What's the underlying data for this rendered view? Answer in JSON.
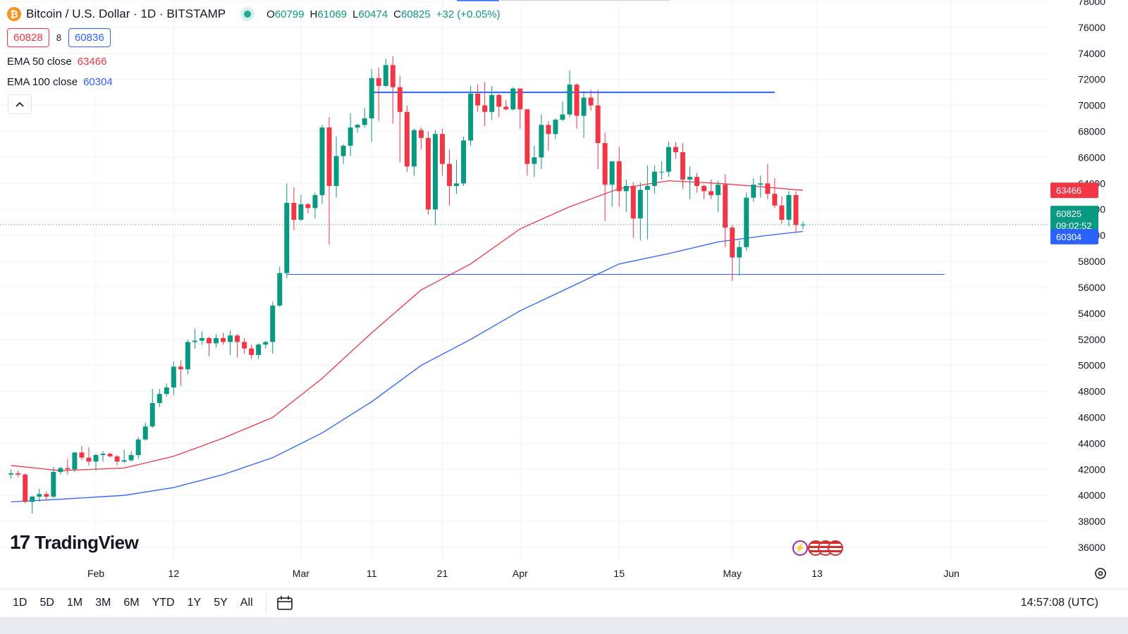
{
  "header": {
    "symbol_title": "Bitcoin / U.S. Dollar · 1D · BITSTAMP",
    "icon": "bitcoin-icon",
    "ohlc": [
      {
        "key": "O",
        "value": "60799"
      },
      {
        "key": "H",
        "value": "61069"
      },
      {
        "key": "L",
        "value": "60474"
      },
      {
        "key": "C",
        "value": "60825"
      },
      {
        "key": "",
        "value": "+32 (+0.05%)"
      }
    ]
  },
  "quote": {
    "sell": "60828",
    "spread": "8",
    "buy": "60836"
  },
  "indicators": [
    {
      "label": "EMA 50 close",
      "value": "63466",
      "color": "#f23645"
    },
    {
      "label": "EMA 100 close",
      "value": "60304",
      "color": "#2962ff"
    }
  ],
  "price_tags": {
    "ema50": "63466",
    "last": "60825",
    "countdown": "09:02:52",
    "ema100": "60304",
    "last_color": "#089981",
    "ema50_color": "#f23645",
    "ema100_color": "#2962ff"
  },
  "branding": {
    "logo_text": "TradingView"
  },
  "toolbar": {
    "timeframes": [
      "1D",
      "5D",
      "1M",
      "3M",
      "6M",
      "YTD",
      "1Y",
      "5Y",
      "All"
    ],
    "calendar_icon": "calendar-icon",
    "clock": "14:57:08 (UTC)"
  },
  "colors": {
    "up": "#089981",
    "down": "#f23645",
    "ema50": "#f23645",
    "ema100": "#2962ff",
    "hline": "#2962ff"
  },
  "chart_data": {
    "type": "candlestick",
    "symbol": "BTCUSD",
    "interval": "1D",
    "ylim": [
      35000,
      78000
    ],
    "yticks": [
      36000,
      38000,
      40000,
      42000,
      44000,
      46000,
      48000,
      50000,
      52000,
      54000,
      56000,
      58000,
      60000,
      62000,
      64000,
      66000,
      68000,
      70000,
      72000,
      74000,
      76000,
      78000
    ],
    "x_tick_labels": [
      "Feb",
      "12",
      "Mar",
      "11",
      "21",
      "Apr",
      "15",
      "May",
      "13",
      "Jun"
    ],
    "x_tick_dates": [
      "2024-02-01",
      "2024-02-12",
      "2024-03-01",
      "2024-03-11",
      "2024-03-21",
      "2024-04-01",
      "2024-04-15",
      "2024-05-01",
      "2024-05-13",
      "2024-06-01"
    ],
    "grid": true,
    "horizontal_lines": [
      {
        "price": 71000,
        "from": "2024-03-11",
        "to": "2024-05-07"
      },
      {
        "price": 57000,
        "from": "2024-02-28",
        "to": "2024-05-31"
      }
    ],
    "candles": [
      {
        "date": "2024-01-20",
        "o": 41600,
        "h": 42000,
        "l": 41300,
        "c": 41700
      },
      {
        "date": "2024-01-21",
        "o": 41700,
        "h": 41900,
        "l": 41400,
        "c": 41600
      },
      {
        "date": "2024-01-22",
        "o": 41600,
        "h": 41700,
        "l": 39400,
        "c": 39500
      },
      {
        "date": "2024-01-23",
        "o": 39500,
        "h": 40000,
        "l": 38600,
        "c": 39900
      },
      {
        "date": "2024-01-24",
        "o": 39900,
        "h": 40500,
        "l": 39500,
        "c": 40100
      },
      {
        "date": "2024-01-25",
        "o": 40100,
        "h": 40300,
        "l": 39600,
        "c": 39900
      },
      {
        "date": "2024-01-26",
        "o": 39900,
        "h": 42200,
        "l": 39800,
        "c": 41800
      },
      {
        "date": "2024-01-27",
        "o": 41800,
        "h": 42200,
        "l": 41600,
        "c": 42100
      },
      {
        "date": "2024-01-28",
        "o": 42100,
        "h": 42800,
        "l": 41600,
        "c": 42000
      },
      {
        "date": "2024-01-29",
        "o": 42000,
        "h": 43300,
        "l": 41800,
        "c": 43300
      },
      {
        "date": "2024-01-30",
        "o": 43300,
        "h": 43800,
        "l": 42700,
        "c": 42900
      },
      {
        "date": "2024-01-31",
        "o": 42900,
        "h": 43700,
        "l": 42300,
        "c": 42600
      },
      {
        "date": "2024-02-01",
        "o": 42600,
        "h": 43200,
        "l": 41900,
        "c": 43100
      },
      {
        "date": "2024-02-02",
        "o": 43100,
        "h": 43400,
        "l": 42600,
        "c": 43200
      },
      {
        "date": "2024-02-03",
        "o": 43200,
        "h": 43300,
        "l": 42900,
        "c": 43000
      },
      {
        "date": "2024-02-04",
        "o": 43000,
        "h": 43100,
        "l": 42300,
        "c": 42600
      },
      {
        "date": "2024-02-05",
        "o": 42600,
        "h": 43500,
        "l": 42500,
        "c": 42700
      },
      {
        "date": "2024-02-06",
        "o": 42700,
        "h": 43400,
        "l": 42600,
        "c": 43100
      },
      {
        "date": "2024-02-07",
        "o": 43100,
        "h": 44500,
        "l": 42800,
        "c": 44300
      },
      {
        "date": "2024-02-08",
        "o": 44300,
        "h": 45600,
        "l": 44200,
        "c": 45300
      },
      {
        "date": "2024-02-09",
        "o": 45300,
        "h": 48200,
        "l": 45200,
        "c": 47100
      },
      {
        "date": "2024-02-10",
        "o": 47100,
        "h": 48200,
        "l": 46800,
        "c": 47800
      },
      {
        "date": "2024-02-11",
        "o": 47800,
        "h": 48600,
        "l": 47600,
        "c": 48300
      },
      {
        "date": "2024-02-12",
        "o": 48300,
        "h": 50300,
        "l": 47700,
        "c": 49900
      },
      {
        "date": "2024-02-13",
        "o": 49900,
        "h": 50400,
        "l": 48400,
        "c": 49700
      },
      {
        "date": "2024-02-14",
        "o": 49700,
        "h": 52000,
        "l": 49300,
        "c": 51800
      },
      {
        "date": "2024-02-15",
        "o": 51800,
        "h": 52800,
        "l": 51300,
        "c": 51900
      },
      {
        "date": "2024-02-16",
        "o": 51900,
        "h": 52600,
        "l": 51600,
        "c": 52100
      },
      {
        "date": "2024-02-17",
        "o": 52100,
        "h": 52200,
        "l": 50700,
        "c": 51700
      },
      {
        "date": "2024-02-18",
        "o": 51700,
        "h": 52400,
        "l": 51400,
        "c": 52100
      },
      {
        "date": "2024-02-19",
        "o": 52100,
        "h": 52500,
        "l": 51600,
        "c": 51800
      },
      {
        "date": "2024-02-20",
        "o": 51800,
        "h": 52700,
        "l": 50800,
        "c": 52300
      },
      {
        "date": "2024-02-21",
        "o": 52300,
        "h": 52400,
        "l": 50600,
        "c": 51800
      },
      {
        "date": "2024-02-22",
        "o": 51800,
        "h": 52100,
        "l": 50900,
        "c": 51300
      },
      {
        "date": "2024-02-23",
        "o": 51300,
        "h": 51600,
        "l": 50500,
        "c": 50800
      },
      {
        "date": "2024-02-24",
        "o": 50800,
        "h": 51700,
        "l": 50500,
        "c": 51600
      },
      {
        "date": "2024-02-25",
        "o": 51600,
        "h": 51900,
        "l": 51300,
        "c": 51800
      },
      {
        "date": "2024-02-26",
        "o": 51800,
        "h": 54900,
        "l": 50900,
        "c": 54600
      },
      {
        "date": "2024-02-27",
        "o": 54600,
        "h": 57600,
        "l": 54500,
        "c": 57100
      },
      {
        "date": "2024-02-28",
        "o": 57100,
        "h": 64000,
        "l": 56700,
        "c": 62500
      },
      {
        "date": "2024-02-29",
        "o": 62500,
        "h": 63700,
        "l": 60400,
        "c": 61200
      },
      {
        "date": "2024-03-01",
        "o": 61200,
        "h": 63100,
        "l": 61100,
        "c": 62400
      },
      {
        "date": "2024-03-02",
        "o": 62400,
        "h": 62500,
        "l": 61700,
        "c": 62100
      },
      {
        "date": "2024-03-03",
        "o": 62100,
        "h": 63300,
        "l": 61300,
        "c": 63100
      },
      {
        "date": "2024-03-04",
        "o": 63100,
        "h": 68500,
        "l": 62400,
        "c": 68300
      },
      {
        "date": "2024-03-05",
        "o": 68300,
        "h": 69100,
        "l": 59300,
        "c": 63800
      },
      {
        "date": "2024-03-06",
        "o": 63800,
        "h": 67600,
        "l": 62900,
        "c": 66100
      },
      {
        "date": "2024-03-07",
        "o": 66100,
        "h": 67000,
        "l": 65500,
        "c": 66900
      },
      {
        "date": "2024-03-08",
        "o": 66900,
        "h": 69400,
        "l": 66100,
        "c": 68300
      },
      {
        "date": "2024-03-09",
        "o": 68300,
        "h": 68600,
        "l": 67900,
        "c": 68500
      },
      {
        "date": "2024-03-10",
        "o": 68500,
        "h": 69800,
        "l": 68300,
        "c": 69000
      },
      {
        "date": "2024-03-11",
        "o": 69000,
        "h": 72800,
        "l": 67200,
        "c": 72100
      },
      {
        "date": "2024-03-12",
        "o": 72100,
        "h": 72900,
        "l": 68800,
        "c": 71500
      },
      {
        "date": "2024-03-13",
        "o": 71500,
        "h": 73600,
        "l": 71400,
        "c": 73100
      },
      {
        "date": "2024-03-14",
        "o": 73100,
        "h": 73800,
        "l": 68600,
        "c": 71400
      },
      {
        "date": "2024-03-15",
        "o": 71400,
        "h": 72300,
        "l": 65600,
        "c": 69500
      },
      {
        "date": "2024-03-16",
        "o": 69500,
        "h": 70000,
        "l": 64900,
        "c": 65300
      },
      {
        "date": "2024-03-17",
        "o": 65300,
        "h": 68200,
        "l": 64600,
        "c": 68100
      },
      {
        "date": "2024-03-18",
        "o": 68100,
        "h": 68300,
        "l": 66600,
        "c": 67500
      },
      {
        "date": "2024-03-19",
        "o": 67500,
        "h": 68000,
        "l": 61600,
        "c": 62000
      },
      {
        "date": "2024-03-20",
        "o": 62000,
        "h": 68100,
        "l": 60800,
        "c": 67800
      },
      {
        "date": "2024-03-21",
        "o": 67800,
        "h": 68200,
        "l": 64600,
        "c": 65500
      },
      {
        "date": "2024-03-22",
        "o": 65500,
        "h": 66600,
        "l": 62300,
        "c": 63800
      },
      {
        "date": "2024-03-23",
        "o": 63800,
        "h": 65800,
        "l": 63200,
        "c": 64000
      },
      {
        "date": "2024-03-24",
        "o": 64000,
        "h": 67600,
        "l": 63800,
        "c": 67300
      },
      {
        "date": "2024-03-25",
        "o": 67300,
        "h": 71500,
        "l": 66900,
        "c": 70900
      },
      {
        "date": "2024-03-26",
        "o": 70900,
        "h": 71600,
        "l": 69500,
        "c": 70000
      },
      {
        "date": "2024-03-27",
        "o": 70000,
        "h": 71800,
        "l": 68400,
        "c": 69500
      },
      {
        "date": "2024-03-28",
        "o": 69500,
        "h": 71500,
        "l": 68900,
        "c": 70800
      },
      {
        "date": "2024-03-29",
        "o": 70800,
        "h": 70900,
        "l": 69100,
        "c": 69900
      },
      {
        "date": "2024-03-30",
        "o": 69900,
        "h": 70400,
        "l": 69600,
        "c": 69700
      },
      {
        "date": "2024-03-31",
        "o": 69700,
        "h": 71400,
        "l": 69600,
        "c": 71300
      },
      {
        "date": "2024-04-01",
        "o": 71300,
        "h": 71300,
        "l": 68200,
        "c": 69700
      },
      {
        "date": "2024-04-02",
        "o": 69700,
        "h": 69700,
        "l": 64600,
        "c": 65500
      },
      {
        "date": "2024-04-03",
        "o": 65500,
        "h": 66900,
        "l": 64500,
        "c": 66000
      },
      {
        "date": "2024-04-04",
        "o": 66000,
        "h": 69300,
        "l": 65100,
        "c": 68500
      },
      {
        "date": "2024-04-05",
        "o": 68500,
        "h": 68800,
        "l": 66500,
        "c": 67800
      },
      {
        "date": "2024-04-06",
        "o": 67800,
        "h": 69000,
        "l": 67400,
        "c": 68900
      },
      {
        "date": "2024-04-07",
        "o": 68900,
        "h": 70300,
        "l": 68800,
        "c": 69300
      },
      {
        "date": "2024-04-08",
        "o": 69300,
        "h": 72700,
        "l": 69100,
        "c": 71600
      },
      {
        "date": "2024-04-09",
        "o": 71600,
        "h": 71700,
        "l": 68200,
        "c": 69200
      },
      {
        "date": "2024-04-10",
        "o": 69200,
        "h": 71100,
        "l": 67500,
        "c": 70600
      },
      {
        "date": "2024-04-11",
        "o": 70600,
        "h": 71200,
        "l": 69600,
        "c": 70000
      },
      {
        "date": "2024-04-12",
        "o": 70000,
        "h": 71200,
        "l": 65100,
        "c": 67100
      },
      {
        "date": "2024-04-13",
        "o": 67100,
        "h": 67900,
        "l": 61100,
        "c": 63900
      },
      {
        "date": "2024-04-14",
        "o": 63900,
        "h": 65700,
        "l": 62200,
        "c": 65700
      },
      {
        "date": "2024-04-15",
        "o": 65700,
        "h": 66800,
        "l": 62200,
        "c": 63400
      },
      {
        "date": "2024-04-16",
        "o": 63400,
        "h": 64300,
        "l": 61800,
        "c": 63800
      },
      {
        "date": "2024-04-17",
        "o": 63800,
        "h": 64100,
        "l": 59800,
        "c": 61300
      },
      {
        "date": "2024-04-18",
        "o": 61300,
        "h": 64100,
        "l": 59600,
        "c": 63500
      },
      {
        "date": "2024-04-19",
        "o": 63500,
        "h": 65400,
        "l": 59700,
        "c": 63800
      },
      {
        "date": "2024-04-20",
        "o": 63800,
        "h": 65400,
        "l": 63200,
        "c": 64900
      },
      {
        "date": "2024-04-21",
        "o": 64900,
        "h": 65700,
        "l": 64300,
        "c": 64900
      },
      {
        "date": "2024-04-22",
        "o": 64900,
        "h": 67200,
        "l": 64500,
        "c": 66800
      },
      {
        "date": "2024-04-23",
        "o": 66800,
        "h": 67200,
        "l": 65900,
        "c": 66400
      },
      {
        "date": "2024-04-24",
        "o": 66400,
        "h": 67100,
        "l": 63600,
        "c": 64300
      },
      {
        "date": "2024-04-25",
        "o": 64300,
        "h": 65300,
        "l": 62800,
        "c": 64500
      },
      {
        "date": "2024-04-26",
        "o": 64500,
        "h": 64800,
        "l": 63300,
        "c": 63800
      },
      {
        "date": "2024-04-27",
        "o": 63800,
        "h": 63900,
        "l": 62800,
        "c": 63400
      },
      {
        "date": "2024-04-28",
        "o": 63400,
        "h": 64300,
        "l": 62800,
        "c": 63100
      },
      {
        "date": "2024-04-29",
        "o": 63100,
        "h": 64200,
        "l": 61800,
        "c": 63900
      },
      {
        "date": "2024-04-30",
        "o": 63900,
        "h": 64700,
        "l": 59100,
        "c": 60600
      },
      {
        "date": "2024-05-01",
        "o": 60600,
        "h": 60800,
        "l": 56500,
        "c": 58300
      },
      {
        "date": "2024-05-02",
        "o": 58300,
        "h": 59600,
        "l": 56900,
        "c": 59100
      },
      {
        "date": "2024-05-03",
        "o": 59100,
        "h": 63300,
        "l": 58800,
        "c": 62900
      },
      {
        "date": "2024-05-04",
        "o": 62900,
        "h": 64400,
        "l": 62600,
        "c": 63900
      },
      {
        "date": "2024-05-05",
        "o": 63900,
        "h": 64600,
        "l": 62900,
        "c": 64000
      },
      {
        "date": "2024-05-06",
        "o": 64000,
        "h": 65500,
        "l": 62800,
        "c": 63200
      },
      {
        "date": "2024-05-07",
        "o": 63200,
        "h": 64400,
        "l": 62100,
        "c": 62300
      },
      {
        "date": "2024-05-08",
        "o": 62300,
        "h": 63000,
        "l": 60900,
        "c": 61200
      },
      {
        "date": "2024-05-09",
        "o": 61200,
        "h": 63400,
        "l": 60700,
        "c": 63100
      },
      {
        "date": "2024-05-10",
        "o": 63100,
        "h": 63400,
        "l": 60200,
        "c": 60800
      },
      {
        "date": "2024-05-11",
        "o": 60799,
        "h": 61069,
        "l": 60474,
        "c": 60825
      }
    ],
    "ema50": [
      {
        "date": "2024-01-20",
        "v": 42300
      },
      {
        "date": "2024-01-27",
        "v": 41900
      },
      {
        "date": "2024-02-05",
        "v": 42100
      },
      {
        "date": "2024-02-12",
        "v": 43000
      },
      {
        "date": "2024-02-19",
        "v": 44400
      },
      {
        "date": "2024-02-26",
        "v": 46000
      },
      {
        "date": "2024-03-04",
        "v": 49000
      },
      {
        "date": "2024-03-11",
        "v": 52500
      },
      {
        "date": "2024-03-18",
        "v": 55800
      },
      {
        "date": "2024-03-25",
        "v": 57800
      },
      {
        "date": "2024-04-01",
        "v": 60500
      },
      {
        "date": "2024-04-08",
        "v": 62200
      },
      {
        "date": "2024-04-15",
        "v": 63600
      },
      {
        "date": "2024-04-22",
        "v": 64200
      },
      {
        "date": "2024-04-29",
        "v": 64000
      },
      {
        "date": "2024-05-06",
        "v": 63700
      },
      {
        "date": "2024-05-11",
        "v": 63466
      }
    ],
    "ema100": [
      {
        "date": "2024-01-20",
        "v": 39500
      },
      {
        "date": "2024-01-27",
        "v": 39700
      },
      {
        "date": "2024-02-05",
        "v": 40000
      },
      {
        "date": "2024-02-12",
        "v": 40600
      },
      {
        "date": "2024-02-19",
        "v": 41600
      },
      {
        "date": "2024-02-26",
        "v": 42900
      },
      {
        "date": "2024-03-04",
        "v": 44800
      },
      {
        "date": "2024-03-11",
        "v": 47200
      },
      {
        "date": "2024-03-18",
        "v": 50000
      },
      {
        "date": "2024-03-25",
        "v": 52000
      },
      {
        "date": "2024-04-01",
        "v": 54200
      },
      {
        "date": "2024-04-08",
        "v": 56000
      },
      {
        "date": "2024-04-15",
        "v": 57800
      },
      {
        "date": "2024-04-22",
        "v": 58600
      },
      {
        "date": "2024-04-29",
        "v": 59500
      },
      {
        "date": "2024-05-06",
        "v": 60000
      },
      {
        "date": "2024-05-11",
        "v": 60304
      }
    ],
    "last_price": 60825
  }
}
